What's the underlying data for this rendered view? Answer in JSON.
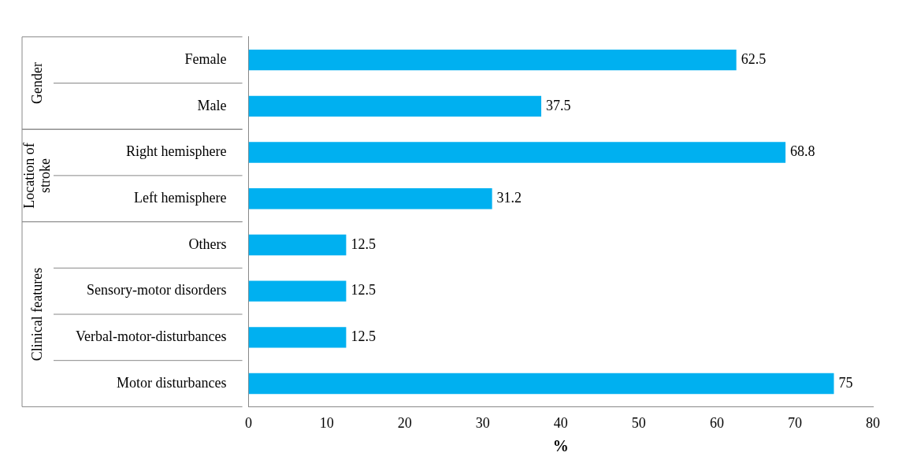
{
  "chart_data": {
    "type": "bar",
    "orientation": "horizontal",
    "categories": [
      "Female",
      "Male",
      "Right hemisphere",
      "Left hemisphere",
      "Others",
      "Sensory-motor disorders",
      "Verbal-motor-disturbances",
      "Motor disturbances"
    ],
    "values": [
      62.5,
      37.5,
      68.8,
      31.2,
      12.5,
      12.5,
      12.5,
      75
    ],
    "color": "#00b0f0",
    "xlim": [
      0,
      80
    ],
    "xticks": [
      0,
      10,
      20,
      30,
      40,
      50,
      60,
      70,
      80
    ],
    "xlabel": "%",
    "data_labels": true,
    "grid": false,
    "legend": false,
    "annotations": [
      "Gender",
      "Location of stroke",
      "Clinical features"
    ]
  }
}
